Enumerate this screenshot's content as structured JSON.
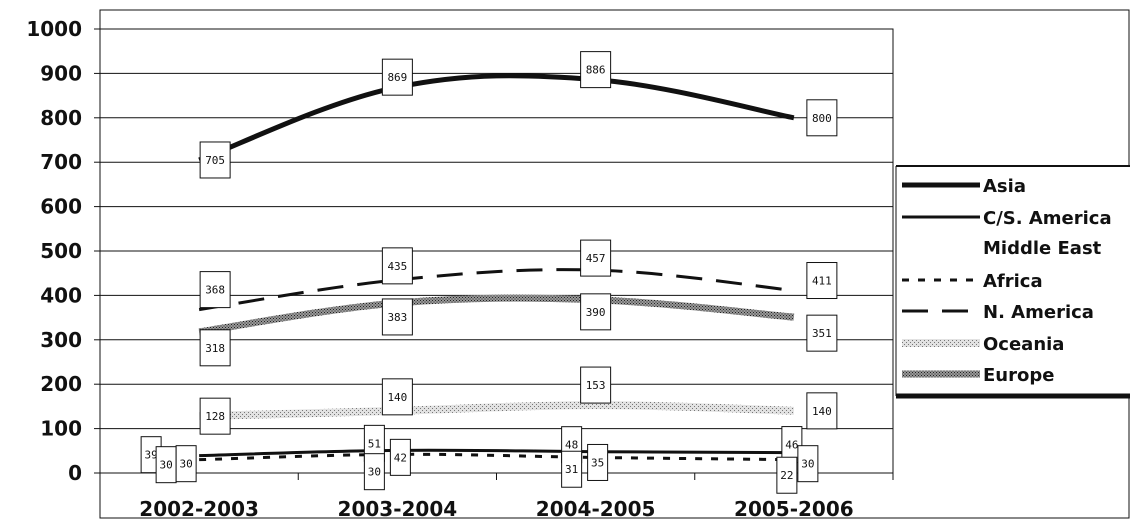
{
  "chart_data": {
    "type": "line",
    "title": "",
    "xlabel": "",
    "ylabel": "",
    "ylim": [
      0,
      1000
    ],
    "yticks": [
      0,
      100,
      200,
      300,
      400,
      500,
      600,
      700,
      800,
      900,
      1000
    ],
    "categories": [
      "2002-2003",
      "2003-2004",
      "2004-2005",
      "2005-2006"
    ],
    "grid": true,
    "legend_position": "right",
    "series": [
      {
        "name": "Asia",
        "values": [
          705,
          869,
          886,
          800
        ],
        "color": "#111111",
        "style": "thick"
      },
      {
        "name": "C/S. America",
        "values": [
          39,
          51,
          48,
          46
        ],
        "color": "#111111",
        "style": "solid"
      },
      {
        "name": "Middle East",
        "values": [
          30,
          30,
          31,
          22
        ],
        "color": "#ffffff",
        "style": "white"
      },
      {
        "name": "Africa",
        "values": [
          30,
          42,
          35,
          30
        ],
        "color": "#111111",
        "style": "dotted"
      },
      {
        "name": "N. America",
        "values": [
          368,
          435,
          457,
          411
        ],
        "color": "#111111",
        "style": "dashed"
      },
      {
        "name": "Oceania",
        "values": [
          128,
          140,
          153,
          140
        ],
        "color": "#bbbbbb",
        "style": "light-pattern"
      },
      {
        "name": "Europe",
        "values": [
          318,
          383,
          390,
          351
        ],
        "color": "#777777",
        "style": "dark-pattern"
      }
    ]
  }
}
